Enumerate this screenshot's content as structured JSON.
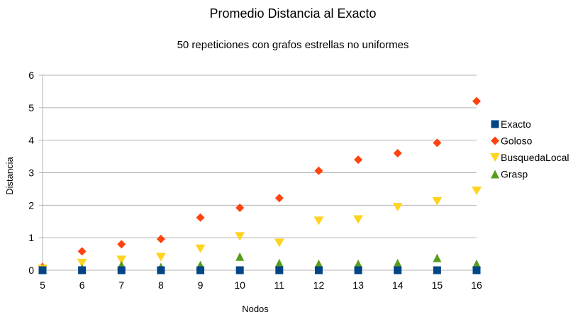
{
  "chart_data": {
    "type": "scatter",
    "title": "Promedio Distancia al Exacto",
    "subtitle": "50 repeticiones con grafos estrellas no uniformes",
    "xlabel": "Nodos",
    "ylabel": "Distancia",
    "x": [
      5,
      6,
      7,
      8,
      9,
      10,
      11,
      12,
      13,
      14,
      15,
      16
    ],
    "xlim": [
      5,
      16
    ],
    "ylim": [
      0,
      6
    ],
    "yticks": [
      0,
      1,
      2,
      3,
      4,
      5,
      6
    ],
    "grid": true,
    "legend_position": "right",
    "series": [
      {
        "name": "Exacto",
        "marker": "square",
        "color": "#004586",
        "values": [
          0,
          0,
          0,
          0,
          0,
          0,
          0,
          0,
          0,
          0,
          0,
          0
        ]
      },
      {
        "name": "Goloso",
        "marker": "diamond",
        "color": "#ff420e",
        "values": [
          0.1,
          0.58,
          0.8,
          0.96,
          1.62,
          1.92,
          2.22,
          3.06,
          3.4,
          3.6,
          3.92,
          5.2
        ]
      },
      {
        "name": "BusquedaLocal",
        "marker": "triangle-down",
        "color": "#ffd320",
        "values": [
          0.04,
          0.22,
          0.32,
          0.4,
          0.66,
          1.04,
          0.84,
          1.52,
          1.56,
          1.94,
          2.12,
          2.44
        ]
      },
      {
        "name": "Grasp",
        "marker": "triangle-up",
        "color": "#579d1c",
        "values": [
          0.02,
          0.06,
          0.16,
          0.1,
          0.16,
          0.42,
          0.22,
          0.2,
          0.2,
          0.22,
          0.38,
          0.2
        ]
      }
    ]
  }
}
